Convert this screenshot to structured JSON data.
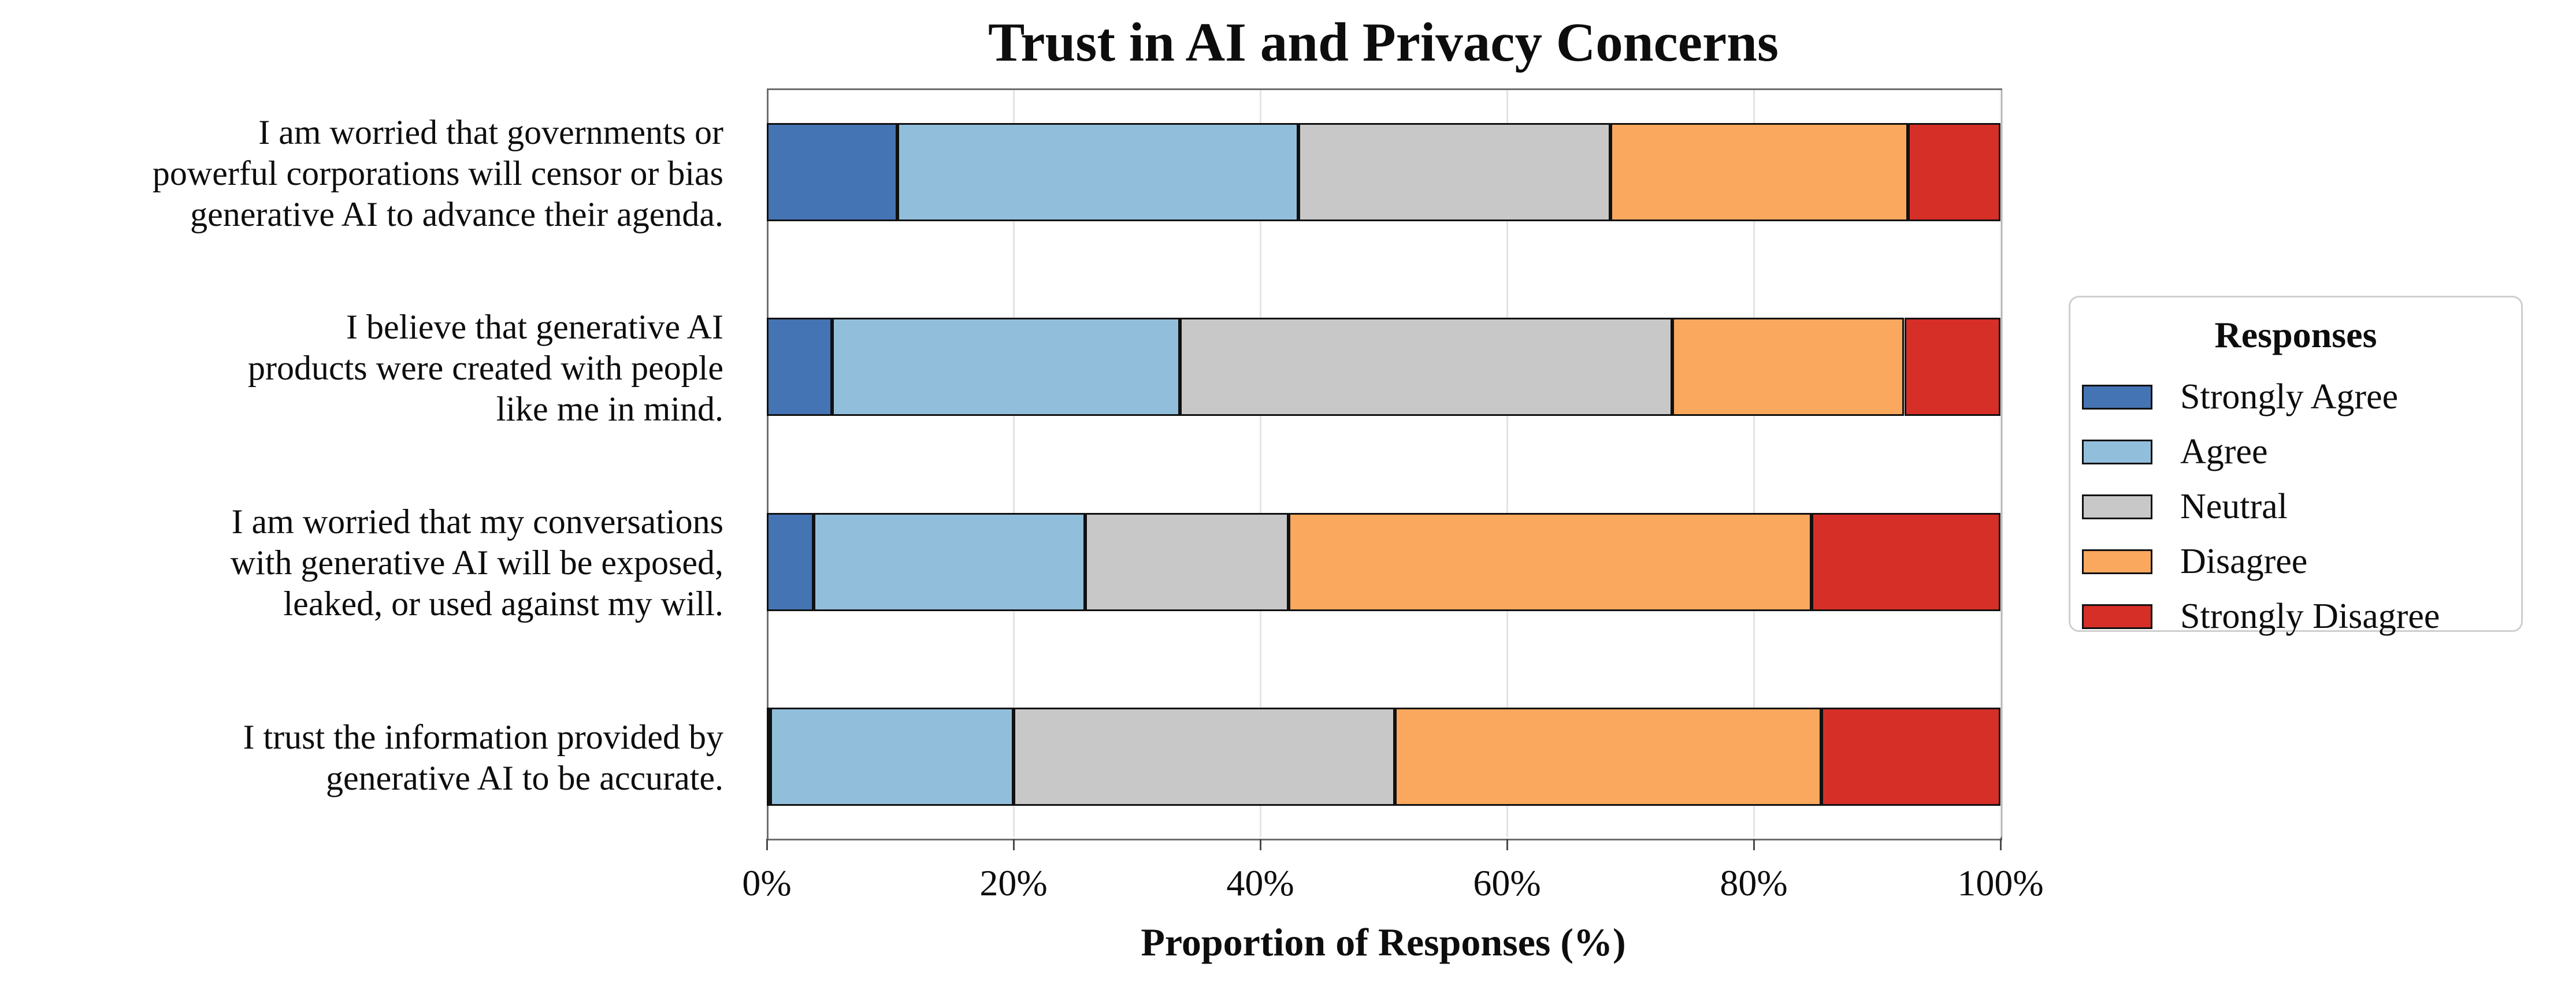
{
  "title": "Trust in AI and Privacy Concerns",
  "xlabel": "Proportion of Responses (%)",
  "x_ticks": [
    "0%",
    "20%",
    "40%",
    "60%",
    "80%",
    "100%"
  ],
  "legend": {
    "title": "Responses",
    "items": [
      {
        "label": "Strongly Agree",
        "color": "#4574B4"
      },
      {
        "label": "Agree",
        "color": "#91BFDB"
      },
      {
        "label": "Neutral",
        "color": "#C8C8C8"
      },
      {
        "label": "Disagree",
        "color": "#FAA85D"
      },
      {
        "label": "Strongly Disagree",
        "color": "#D62F27"
      }
    ]
  },
  "chart_data": {
    "type": "bar",
    "orientation": "horizontal",
    "stacked": true,
    "title": "Trust in AI and Privacy Concerns",
    "xlabel": "Proportion of Responses (%)",
    "ylabel": "",
    "xlim": [
      0,
      100
    ],
    "grid": true,
    "legend_position": "center right",
    "categories": [
      {
        "lines": [
          "I am worried that governments or",
          "powerful corporations will censor or bias",
          "generative AI to advance their agenda."
        ]
      },
      {
        "lines": [
          "I believe that generative AI",
          "products were created with people",
          "like me in mind."
        ]
      },
      {
        "lines": [
          "I am worried that my conversations",
          "with generative AI will be exposed,",
          "leaked, or used against my will."
        ]
      },
      {
        "lines": [
          "I trust the information provided by",
          "generative AI to be accurate."
        ]
      }
    ],
    "series": [
      {
        "name": "Strongly Agree",
        "color": "#4574B4",
        "values": [
          10.6,
          5.3,
          3.8,
          0.3
        ]
      },
      {
        "name": "Agree",
        "color": "#91BFDB",
        "values": [
          32.5,
          28.2,
          22.0,
          19.7
        ]
      },
      {
        "name": "Neutral",
        "color": "#C8C8C8",
        "values": [
          25.3,
          39.9,
          16.5,
          30.9
        ]
      },
      {
        "name": "Disagree",
        "color": "#FAA85D",
        "values": [
          24.1,
          18.8,
          42.4,
          34.6
        ]
      },
      {
        "name": "Strongly Disagree",
        "color": "#D62F27",
        "values": [
          7.5,
          7.8,
          15.3,
          14.5
        ]
      }
    ]
  },
  "colors": {
    "grid": "#e4e4e4",
    "spine": "#6e6e6e",
    "bar_edge": "#111111",
    "legend_border": "#cfcfcf"
  }
}
